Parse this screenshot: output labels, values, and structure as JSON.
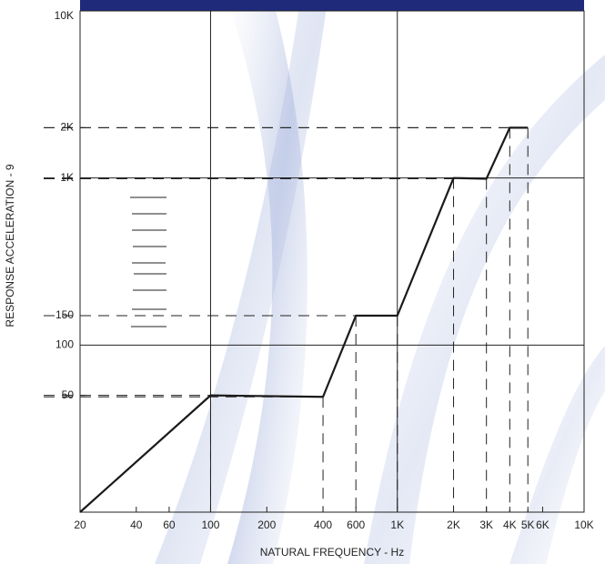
{
  "chart_data": {
    "type": "line",
    "xlabel": "NATURAL FREQUENCY - Hz",
    "ylabel": "RESPONSE ACCELERATION - 9",
    "xscale": "log",
    "yscale": "log",
    "xlim": [
      20,
      10000
    ],
    "ylim": [
      10,
      10000
    ],
    "xticks": [
      20,
      40,
      60,
      100,
      200,
      400,
      600,
      {
        "value": 1000,
        "label": "1K"
      },
      {
        "value": 2000,
        "label": "2K"
      },
      {
        "value": 3000,
        "label": "3K"
      },
      {
        "value": 4000,
        "label": "4K"
      },
      {
        "value": 5000,
        "label": "5K"
      },
      {
        "value": 6000,
        "label": "6K"
      },
      {
        "value": 10000,
        "label": "10K"
      }
    ],
    "yticks": [
      50,
      100,
      150,
      {
        "value": 1000,
        "label": "1K"
      },
      {
        "value": 2000,
        "label": "2K"
      },
      {
        "value": 10000,
        "label": "10K"
      }
    ],
    "x": [
      20,
      100,
      400,
      600,
      1000,
      2000,
      3000,
      4000,
      5000
    ],
    "values": [
      10,
      50,
      49,
      150,
      150,
      1000,
      990,
      2000,
      2000
    ],
    "color": "#1a1a1a"
  }
}
